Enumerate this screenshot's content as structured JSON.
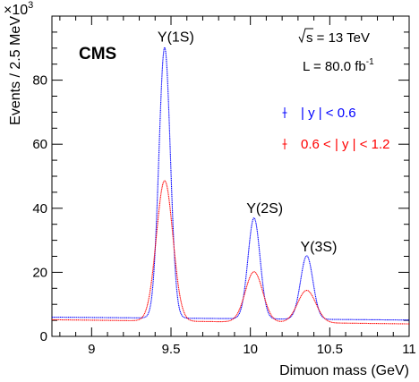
{
  "chart_data": {
    "type": "scatter",
    "xlabel": "Dimuon mass (GeV)",
    "ylabel": "Events / 2.5 MeV",
    "y_multiplier": "×10",
    "y_multiplier_exp": "3",
    "xlim": [
      8.75,
      11.0
    ],
    "ylim": [
      0,
      100
    ],
    "x_ticks": [
      9,
      9.5,
      10,
      10.5,
      11
    ],
    "x_tick_labels": [
      "9",
      "9.5",
      "10",
      "10.5",
      "11"
    ],
    "y_ticks": [
      0,
      20,
      40,
      60,
      80
    ],
    "y_tick_labels": [
      "0",
      "20",
      "40",
      "60",
      "80"
    ],
    "experiment": "CMS",
    "sqrt_s_label": "s",
    "energy_text": " = 13 TeV",
    "lumi_text": "L = 80.0 fb",
    "lumi_exp": "-1",
    "peak_labels": [
      {
        "text": "Υ(1S)",
        "x": 9.46,
        "y": 92
      },
      {
        "text": "Υ(2S)",
        "x": 10.02,
        "y": 38.5
      },
      {
        "text": "Υ(3S)",
        "x": 10.36,
        "y": 26.5
      }
    ],
    "series": [
      {
        "name": "| y | < 0.6",
        "color": "#0000ff",
        "background": [
          6.0,
          -0.9
        ],
        "peaks": [
          {
            "mass": 9.46,
            "height": 84.5,
            "width": 0.036
          },
          {
            "mass": 10.023,
            "height": 31.5,
            "width": 0.038
          },
          {
            "mass": 10.355,
            "height": 19.8,
            "width": 0.039
          }
        ]
      },
      {
        "name": "0.6 < | y | < 1.2",
        "color": "#ff0000",
        "background": [
          5.2,
          -1.3
        ],
        "peaks": [
          {
            "mass": 9.46,
            "height": 43.8,
            "width": 0.052
          },
          {
            "mass": 10.023,
            "height": 15.7,
            "width": 0.055
          },
          {
            "mass": 10.355,
            "height": 10.1,
            "width": 0.057
          }
        ]
      }
    ]
  }
}
